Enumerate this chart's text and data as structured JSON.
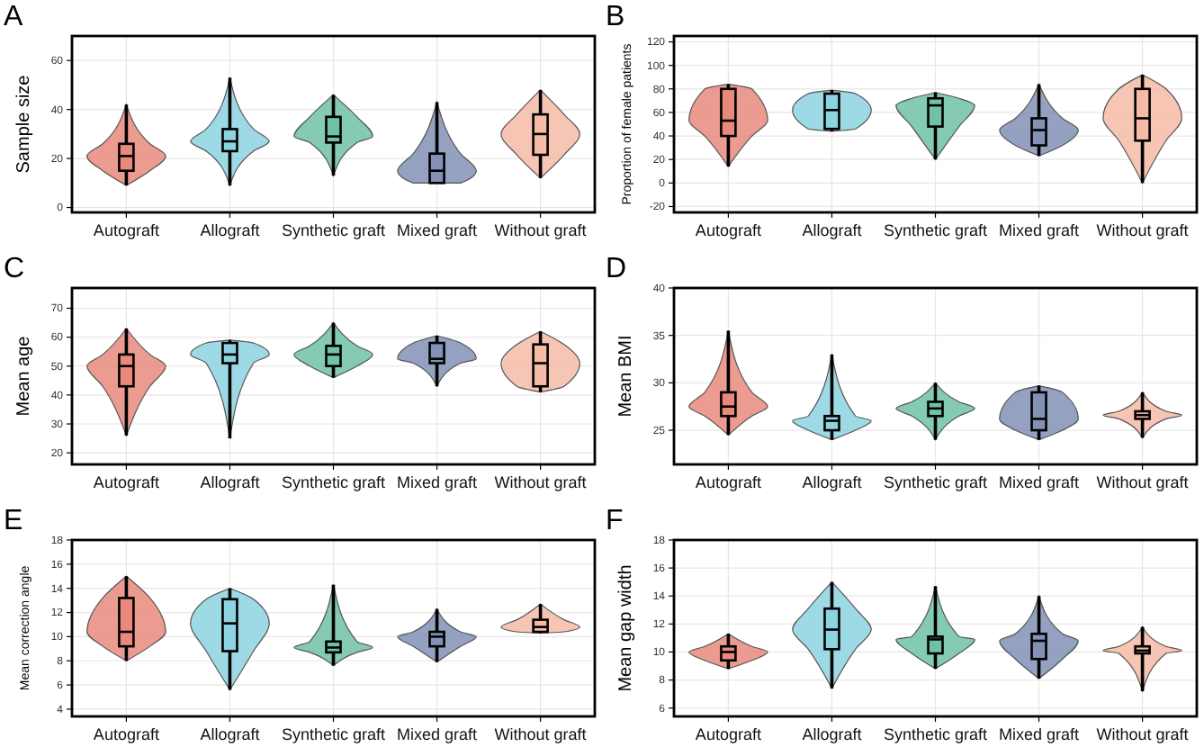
{
  "chart_data": [
    {
      "type": "box",
      "title": "A",
      "ylabel": "Sample size",
      "categories": [
        "Autograft",
        "Allograft",
        "Synthetic graft",
        "Mixed graft",
        "Without graft"
      ],
      "colors": [
        "#e8897c",
        "#8dd3e0",
        "#6fc1a8",
        "#8391b5",
        "#f6bba6"
      ],
      "ylim": [
        -2,
        70
      ],
      "yticks": [
        0,
        20,
        40,
        60
      ],
      "grid": true,
      "boxes": [
        {
          "low": 9,
          "q1": 15,
          "median": 21,
          "q3": 26,
          "high": 42
        },
        {
          "low": 9,
          "q1": 23,
          "median": 27,
          "q3": 32,
          "high": 53
        },
        {
          "low": 13,
          "q1": 26.5,
          "median": 29,
          "q3": 37,
          "high": 46
        },
        {
          "low": 10,
          "q1": 10,
          "median": 15,
          "q3": 22,
          "high": 43
        },
        {
          "low": 12,
          "q1": 21.5,
          "median": 30,
          "q3": 38,
          "high": 48
        }
      ]
    },
    {
      "type": "box",
      "title": "B",
      "ylabel": "Proportion of female patients",
      "categories": [
        "Autograft",
        "Allograft",
        "Synthetic graft",
        "Mixed graft",
        "Without graft"
      ],
      "colors": [
        "#e8897c",
        "#8dd3e0",
        "#6fc1a8",
        "#8391b5",
        "#f6bba6"
      ],
      "ylim": [
        -25,
        125
      ],
      "yticks": [
        -20,
        0,
        20,
        40,
        60,
        80,
        100,
        120
      ],
      "grid": true,
      "boxes": [
        {
          "low": 14,
          "q1": 40,
          "median": 53,
          "q3": 80,
          "high": 84
        },
        {
          "low": 44,
          "q1": 46,
          "median": 62,
          "q3": 76,
          "high": 79
        },
        {
          "low": 20,
          "q1": 48,
          "median": 66,
          "q3": 72,
          "high": 77
        },
        {
          "low": 23,
          "q1": 32,
          "median": 45,
          "q3": 55,
          "high": 84
        },
        {
          "low": 0,
          "q1": 36,
          "median": 55,
          "q3": 80,
          "high": 92
        }
      ]
    },
    {
      "type": "box",
      "title": "C",
      "ylabel": "Mean age",
      "categories": [
        "Autograft",
        "Allograft",
        "Synthetic graft",
        "Mixed graft",
        "Without graft"
      ],
      "colors": [
        "#e8897c",
        "#8dd3e0",
        "#6fc1a8",
        "#8391b5",
        "#f6bba6"
      ],
      "ylim": [
        16,
        77
      ],
      "yticks": [
        20,
        30,
        40,
        50,
        60,
        70
      ],
      "grid": true,
      "boxes": [
        {
          "low": 26,
          "q1": 43,
          "median": 50,
          "q3": 54,
          "high": 63
        },
        {
          "low": 25,
          "q1": 51,
          "median": 54,
          "q3": 58,
          "high": 59
        },
        {
          "low": 46,
          "q1": 50,
          "median": 54,
          "q3": 57,
          "high": 65
        },
        {
          "low": 43,
          "q1": 51,
          "median": 52.5,
          "q3": 58,
          "high": 60.5
        },
        {
          "low": 41,
          "q1": 43,
          "median": 51,
          "q3": 57.5,
          "high": 62
        }
      ]
    },
    {
      "type": "box",
      "title": "D",
      "ylabel": "Mean BMI",
      "categories": [
        "Autograft",
        "Allograft",
        "Synthetic graft",
        "Mixed graft",
        "Without graft"
      ],
      "colors": [
        "#e8897c",
        "#8dd3e0",
        "#6fc1a8",
        "#8391b5",
        "#f6bba6"
      ],
      "ylim": [
        21.4,
        40
      ],
      "yticks": [
        25,
        30,
        35,
        40
      ],
      "grid": true,
      "boxes": [
        {
          "low": 24.5,
          "q1": 26.5,
          "median": 27.5,
          "q3": 29,
          "high": 35.5
        },
        {
          "low": 24,
          "q1": 25,
          "median": 26,
          "q3": 26.5,
          "high": 33
        },
        {
          "low": 24,
          "q1": 26.5,
          "median": 27.3,
          "q3": 28,
          "high": 30
        },
        {
          "low": 24,
          "q1": 25,
          "median": 26.2,
          "q3": 29,
          "high": 29.7
        },
        {
          "low": 24.2,
          "q1": 26.2,
          "median": 26.6,
          "q3": 27,
          "high": 29
        }
      ]
    },
    {
      "type": "box",
      "title": "E",
      "ylabel": "Mean correction angle",
      "categories": [
        "Autograft",
        "Allograft",
        "Synthetic graft",
        "Mixed graft",
        "Without graft"
      ],
      "colors": [
        "#e8897c",
        "#8dd3e0",
        "#6fc1a8",
        "#8391b5",
        "#f6bba6"
      ],
      "ylim": [
        3.4,
        18
      ],
      "yticks": [
        4,
        6,
        8,
        10,
        12,
        14,
        16,
        18
      ],
      "grid": true,
      "boxes": [
        {
          "low": 8,
          "q1": 9.2,
          "median": 10.4,
          "q3": 13.2,
          "high": 15
        },
        {
          "low": 5.6,
          "q1": 8.8,
          "median": 11.1,
          "q3": 13.1,
          "high": 14
        },
        {
          "low": 7.6,
          "q1": 8.7,
          "median": 9.1,
          "q3": 9.6,
          "high": 14.3
        },
        {
          "low": 7.9,
          "q1": 9.2,
          "median": 10,
          "q3": 10.4,
          "high": 12.3
        },
        {
          "low": 10.3,
          "q1": 10.4,
          "median": 10.8,
          "q3": 11.4,
          "high": 12.7
        }
      ]
    },
    {
      "type": "box",
      "title": "F",
      "ylabel": "Mean gap width",
      "categories": [
        "Autograft",
        "Allograft",
        "Synthetic graft",
        "Mixed graft",
        "Without graft"
      ],
      "colors": [
        "#e8897c",
        "#8dd3e0",
        "#6fc1a8",
        "#8391b5",
        "#f6bba6"
      ],
      "ylim": [
        5.4,
        18
      ],
      "yticks": [
        6,
        8,
        10,
        12,
        14,
        16,
        18
      ],
      "grid": true,
      "boxes": [
        {
          "low": 8.8,
          "q1": 9.4,
          "median": 10,
          "q3": 10.4,
          "high": 11.3
        },
        {
          "low": 7.4,
          "q1": 10.2,
          "median": 11.6,
          "q3": 13.1,
          "high": 15
        },
        {
          "low": 8.8,
          "q1": 9.9,
          "median": 10.9,
          "q3": 11.1,
          "high": 14.7
        },
        {
          "low": 8.1,
          "q1": 9.5,
          "median": 10.8,
          "q3": 11.3,
          "high": 14
        },
        {
          "low": 7.2,
          "q1": 9.9,
          "median": 10.1,
          "q3": 10.4,
          "high": 11.8
        }
      ]
    }
  ]
}
